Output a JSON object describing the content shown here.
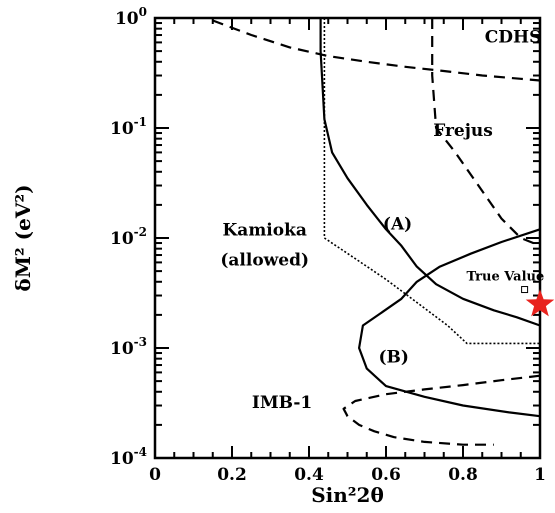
{
  "chart_data": {
    "type": "line",
    "title": "",
    "xlabel": "Sin²2θ",
    "ylabel": "δM² (eV²)",
    "xlim": [
      0,
      1
    ],
    "ylim": [
      0.0001,
      1
    ],
    "y_scale": "log",
    "grid": false,
    "x_tick_labels": [
      "0",
      "0.2",
      "0.4",
      "0.6",
      "0.8",
      "1"
    ],
    "x_ticks": [
      0,
      0.2,
      0.4,
      0.6,
      0.8,
      1
    ],
    "y_tick_labels": [
      {
        "base": "10",
        "exp": "-4"
      },
      {
        "base": "10",
        "exp": "-3"
      },
      {
        "base": "10",
        "exp": "-2"
      },
      {
        "base": "10",
        "exp": "-1"
      },
      {
        "base": "10",
        "exp": "0"
      }
    ],
    "y_ticks": [
      0.0001,
      0.001,
      0.01,
      0.1,
      1
    ],
    "series": [
      {
        "name": "CDHS",
        "style": "dashed",
        "x": [
          0.15,
          0.25,
          0.35,
          0.45,
          0.55,
          0.65,
          0.75,
          0.85,
          0.95,
          1.0
        ],
        "y": [
          0.95,
          0.7,
          0.54,
          0.45,
          0.4,
          0.36,
          0.33,
          0.3,
          0.28,
          0.27
        ]
      },
      {
        "name": "Frejus",
        "style": "dashed",
        "x": [
          0.72,
          0.72,
          0.73,
          0.78,
          0.84,
          0.9,
          0.95,
          1.0
        ],
        "y": [
          1.0,
          0.3,
          0.1,
          0.06,
          0.03,
          0.015,
          0.01,
          0.0085
        ]
      },
      {
        "name": "Kamioka (allowed)",
        "style": "dotted",
        "x": [
          0.44,
          0.44,
          0.44,
          0.52,
          0.6,
          0.68,
          0.76,
          0.81,
          0.9,
          1.0
        ],
        "y": [
          1.0,
          0.1,
          0.01,
          0.0065,
          0.0042,
          0.0026,
          0.0016,
          0.0011,
          0.0011,
          0.0011
        ]
      },
      {
        "name": "(A)",
        "style": "solid",
        "x": [
          0.43,
          0.43,
          0.44,
          0.46,
          0.5,
          0.55,
          0.6,
          0.64,
          0.68,
          0.73,
          0.8,
          0.88,
          0.94,
          1.0
        ],
        "y": [
          1.0,
          0.5,
          0.12,
          0.06,
          0.035,
          0.02,
          0.012,
          0.0085,
          0.0055,
          0.0038,
          0.0028,
          0.0022,
          0.0019,
          0.0016
        ]
      },
      {
        "name": "(B)",
        "style": "solid",
        "x": [
          1.0,
          0.9,
          0.82,
          0.74,
          0.68,
          0.64,
          0.58,
          0.54,
          0.53,
          0.55,
          0.6,
          0.7,
          0.8,
          0.92,
          1.0
        ],
        "y": [
          0.012,
          0.0092,
          0.0072,
          0.0055,
          0.004,
          0.0028,
          0.002,
          0.0016,
          0.001,
          0.00065,
          0.00045,
          0.00036,
          0.0003,
          0.00026,
          0.00024
        ]
      },
      {
        "name": "IMB-1",
        "style": "dashed",
        "x": [
          1.0,
          0.9,
          0.8,
          0.7,
          0.6,
          0.52,
          0.49,
          0.5,
          0.53,
          0.57,
          0.62,
          0.7,
          0.8,
          0.88
        ],
        "y": [
          0.00056,
          0.00051,
          0.00046,
          0.00042,
          0.00038,
          0.00033,
          0.00028,
          0.00024,
          0.0002,
          0.000175,
          0.000155,
          0.00014,
          0.000132,
          0.000132
        ]
      }
    ],
    "annotations": [
      {
        "text": "CDHS",
        "x": 0.93,
        "y": 0.6
      },
      {
        "text": "Frejus",
        "x": 0.8,
        "y": 0.085
      },
      {
        "text": "(A)",
        "x": 0.63,
        "y": 0.012
      },
      {
        "text": "Kamioka",
        "x": 0.285,
        "y": 0.0105
      },
      {
        "text": "(allowed)",
        "x": 0.285,
        "y": 0.0056
      },
      {
        "text": "(B)",
        "x": 0.62,
        "y": 0.00074
      },
      {
        "text": "IMB-1",
        "x": 0.33,
        "y": 0.000286
      },
      {
        "text": "True Value",
        "x": 0.91,
        "y": 0.0041
      }
    ],
    "markers": [
      {
        "name": "True Value",
        "shape": "star",
        "x": 1.0,
        "y": 0.0025,
        "color": "#e8231e"
      },
      {
        "name": "small-square",
        "shape": "square",
        "x": 0.96,
        "y": 0.0034,
        "color": "#000000"
      }
    ],
    "colors": {
      "curves": "#000000",
      "true_value": "#e8231e",
      "axes": "#000000"
    }
  }
}
